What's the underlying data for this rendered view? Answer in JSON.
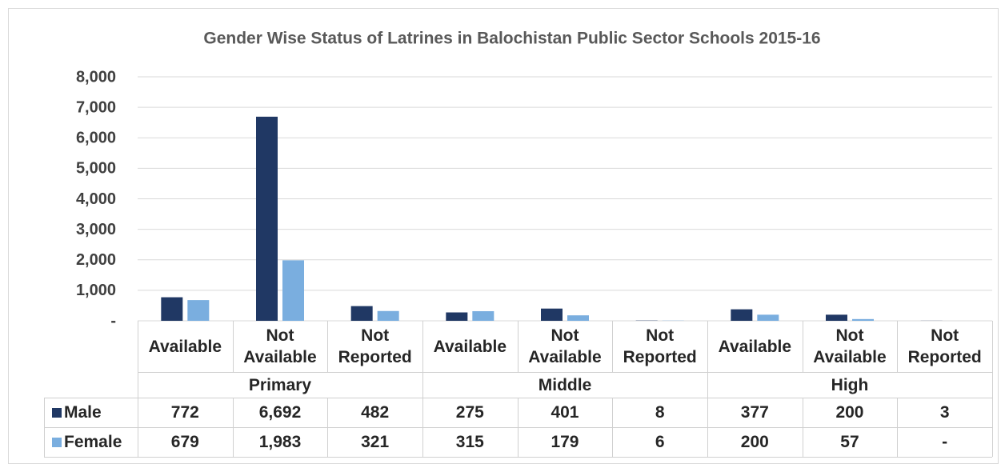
{
  "chart_data": {
    "type": "bar",
    "title": "Gender Wise Status of Latrines in Balochistan Public Sector Schools 2015-16",
    "groups": [
      "Primary",
      "Middle",
      "High"
    ],
    "categories": [
      "Available",
      "Not Available",
      "Not Reported",
      "Available",
      "Not Available",
      "Not Reported",
      "Available",
      "Not Available",
      "Not Reported"
    ],
    "series": [
      {
        "name": "Male",
        "color": "#203864",
        "values": [
          772,
          6692,
          482,
          275,
          401,
          8,
          377,
          200,
          3
        ],
        "value_labels": [
          "772",
          "6,692",
          "482",
          "275",
          "401",
          "8",
          "377",
          "200",
          "3"
        ]
      },
      {
        "name": "Female",
        "color": "#7aaedf",
        "values": [
          679,
          1983,
          321,
          315,
          179,
          6,
          200,
          57,
          0
        ],
        "value_labels": [
          "679",
          "1,983",
          "321",
          "315",
          "179",
          "6",
          "200",
          "57",
          "-"
        ]
      }
    ],
    "ylim": [
      0,
      8000
    ],
    "yticks": [
      {
        "value": 0,
        "label": "-"
      },
      {
        "value": 1000,
        "label": "1,000"
      },
      {
        "value": 2000,
        "label": "2,000"
      },
      {
        "value": 3000,
        "label": "3,000"
      },
      {
        "value": 4000,
        "label": "4,000"
      },
      {
        "value": 5000,
        "label": "5,000"
      },
      {
        "value": 6000,
        "label": "6,000"
      },
      {
        "value": 7000,
        "label": "7,000"
      },
      {
        "value": 8000,
        "label": "8,000"
      }
    ],
    "grid": true,
    "legend": "table"
  }
}
